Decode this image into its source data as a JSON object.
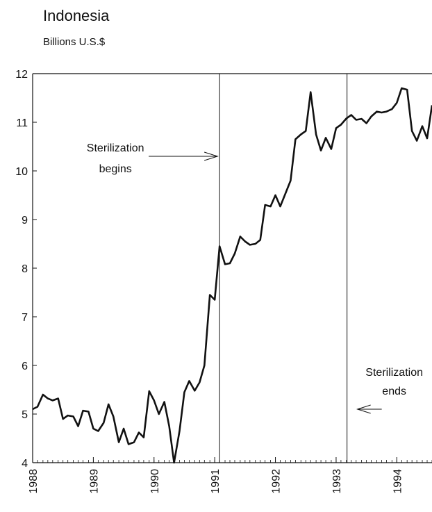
{
  "chart_data": {
    "type": "line",
    "title": "Indonesia",
    "subtitle": "Billions U.S.$",
    "x": [
      1988.0,
      1988.08,
      1988.17,
      1988.25,
      1988.33,
      1988.42,
      1988.5,
      1988.58,
      1988.67,
      1988.75,
      1988.83,
      1988.92,
      1989.0,
      1989.08,
      1989.17,
      1989.25,
      1989.33,
      1989.42,
      1989.5,
      1989.58,
      1989.67,
      1989.75,
      1989.83,
      1989.92,
      1990.0,
      1990.08,
      1990.17,
      1990.25,
      1990.33,
      1990.42,
      1990.5,
      1990.58,
      1990.67,
      1990.75,
      1990.83,
      1990.92,
      1991.0,
      1991.08,
      1991.17,
      1991.25,
      1991.33,
      1991.42,
      1991.5,
      1991.58,
      1991.67,
      1991.75,
      1991.83,
      1991.92,
      1992.0,
      1992.08,
      1992.17,
      1992.25,
      1992.33,
      1992.42,
      1992.5,
      1992.58,
      1992.67,
      1992.75,
      1992.83,
      1992.92,
      1993.0,
      1993.08,
      1993.17,
      1993.25,
      1993.33,
      1993.42,
      1993.5,
      1993.58,
      1993.67,
      1993.75,
      1993.83,
      1993.92,
      1994.0,
      1994.08,
      1994.17,
      1994.25,
      1994.33,
      1994.42,
      1994.5,
      1994.58
    ],
    "series": [
      {
        "name": "Indonesia",
        "color": "#111111",
        "values": [
          5.1,
          5.15,
          5.4,
          5.32,
          5.28,
          5.32,
          4.9,
          4.97,
          4.95,
          4.75,
          5.07,
          5.05,
          4.7,
          4.65,
          4.82,
          5.2,
          4.95,
          4.42,
          4.7,
          4.38,
          4.42,
          4.62,
          4.52,
          5.47,
          5.28,
          5.0,
          5.25,
          4.75,
          4.0,
          4.65,
          5.45,
          5.68,
          5.48,
          5.65,
          6.0,
          7.45,
          7.35,
          8.45,
          8.08,
          8.1,
          8.3,
          8.65,
          8.55,
          8.48,
          8.5,
          8.58,
          9.3,
          9.27,
          9.5,
          9.27,
          9.55,
          9.8,
          10.65,
          10.75,
          10.82,
          11.62,
          10.75,
          10.42,
          10.68,
          10.45,
          10.88,
          10.95,
          11.08,
          11.15,
          11.05,
          11.07,
          10.98,
          11.12,
          11.22,
          11.2,
          11.22,
          11.27,
          11.4,
          11.7,
          11.67,
          10.82,
          10.62,
          10.92,
          10.67,
          11.35
        ]
      }
    ],
    "xlim": [
      1988,
      1994.58
    ],
    "xticks": [
      1988,
      1989,
      1990,
      1991,
      1992,
      1993,
      1994
    ],
    "ylim": [
      4,
      12
    ],
    "yticks": [
      4,
      5,
      6,
      7,
      8,
      9,
      10,
      11,
      12
    ],
    "vlines": [
      1991.08,
      1993.18
    ],
    "annotations": [
      {
        "lines": [
          "Sterilization",
          "begins"
        ],
        "x": 1991.08,
        "y": 10.3,
        "arrow": "right"
      },
      {
        "lines": [
          "Sterilization",
          "ends"
        ],
        "x": 1993.18,
        "y": 5.1,
        "arrow": "left"
      }
    ]
  }
}
